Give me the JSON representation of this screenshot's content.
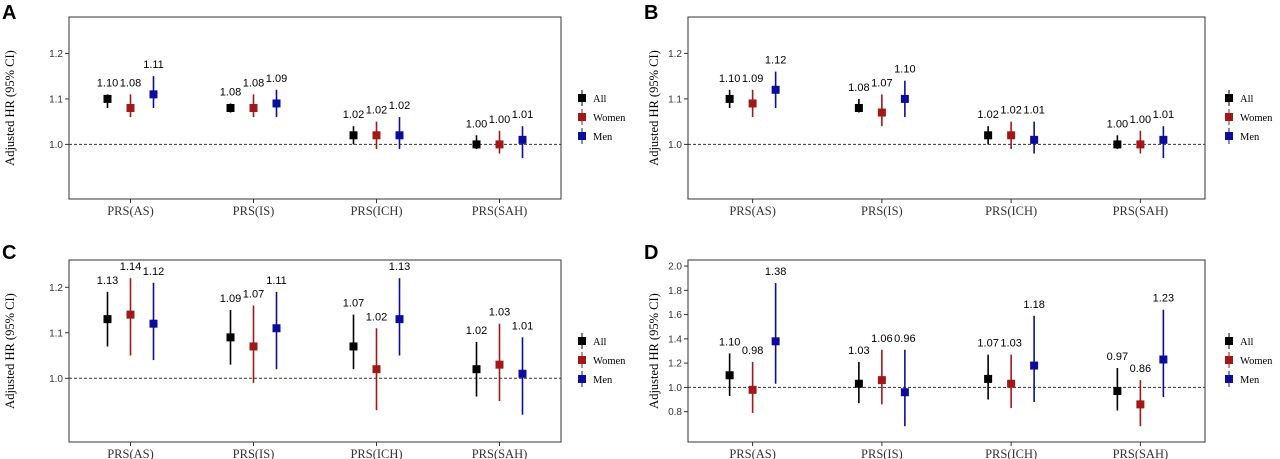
{
  "colors": {
    "All": "#000000",
    "Women": "#a01919",
    "Men": "#0d0d9a"
  },
  "legend": [
    "All",
    "Women",
    "Men"
  ],
  "chart_data": [
    {
      "panel": "A",
      "type": "errorbar",
      "ylabel": "Adjusted HR (95% CI)",
      "categories": [
        "PRS(AS)",
        "PRS(IS)",
        "PRS(ICH)",
        "PRS(SAH)"
      ],
      "ylim": [
        0.88,
        1.28
      ],
      "yticks": [
        1.0,
        1.1,
        1.2
      ],
      "ytick_labels": [
        "1.0",
        "1.1",
        "1.2"
      ],
      "reference_line": 1.0,
      "series": [
        {
          "name": "All",
          "hr": [
            1.1,
            1.08,
            1.02,
            1.0
          ],
          "lower": [
            1.08,
            1.07,
            1.0,
            0.99
          ],
          "upper": [
            1.11,
            1.09,
            1.04,
            1.02
          ],
          "labels": [
            "1.10",
            "1.08",
            "1.02",
            "1.00"
          ]
        },
        {
          "name": "Women",
          "hr": [
            1.08,
            1.08,
            1.02,
            1.0
          ],
          "lower": [
            1.06,
            1.06,
            0.99,
            0.98
          ],
          "upper": [
            1.11,
            1.11,
            1.05,
            1.03
          ],
          "labels": [
            "1.08",
            "1.08",
            "1.02",
            "1.00"
          ]
        },
        {
          "name": "Men",
          "hr": [
            1.11,
            1.09,
            1.02,
            1.01
          ],
          "lower": [
            1.08,
            1.06,
            0.99,
            0.97
          ],
          "upper": [
            1.15,
            1.12,
            1.06,
            1.04
          ],
          "labels": [
            "1.11",
            "1.09",
            "1.02",
            "1.01"
          ]
        }
      ]
    },
    {
      "panel": "B",
      "type": "errorbar",
      "ylabel": "Adjusted HR (95% CI)",
      "categories": [
        "PRS(AS)",
        "PRS(IS)",
        "PRS(ICH)",
        "PRS(SAH)"
      ],
      "ylim": [
        0.88,
        1.28
      ],
      "yticks": [
        1.0,
        1.1,
        1.2
      ],
      "ytick_labels": [
        "1.0",
        "1.1",
        "1.2"
      ],
      "reference_line": 1.0,
      "series": [
        {
          "name": "All",
          "hr": [
            1.1,
            1.08,
            1.02,
            1.0
          ],
          "lower": [
            1.08,
            1.07,
            1.0,
            0.99
          ],
          "upper": [
            1.12,
            1.1,
            1.04,
            1.02
          ],
          "labels": [
            "1.10",
            "1.08",
            "1.02",
            "1.00"
          ]
        },
        {
          "name": "Women",
          "hr": [
            1.09,
            1.07,
            1.02,
            1.0
          ],
          "lower": [
            1.06,
            1.04,
            0.99,
            0.98
          ],
          "upper": [
            1.12,
            1.11,
            1.05,
            1.03
          ],
          "labels": [
            "1.09",
            "1.07",
            "1.02",
            "1.00"
          ]
        },
        {
          "name": "Men",
          "hr": [
            1.12,
            1.1,
            1.01,
            1.01
          ],
          "lower": [
            1.08,
            1.06,
            0.98,
            0.97
          ],
          "upper": [
            1.16,
            1.14,
            1.05,
            1.04
          ],
          "labels": [
            "1.12",
            "1.10",
            "1.01",
            "1.01"
          ]
        }
      ]
    },
    {
      "panel": "C",
      "type": "errorbar",
      "ylabel": "Adjusted HR (95% CI)",
      "categories": [
        "PRS(AS)",
        "PRS(IS)",
        "PRS(ICH)",
        "PRS(SAH)"
      ],
      "ylim": [
        0.86,
        1.26
      ],
      "yticks": [
        1.0,
        1.1,
        1.2
      ],
      "ytick_labels": [
        "1.0",
        "1.1",
        "1.2"
      ],
      "reference_line": 1.0,
      "series": [
        {
          "name": "All",
          "hr": [
            1.13,
            1.09,
            1.07,
            1.02
          ],
          "lower": [
            1.07,
            1.03,
            1.02,
            0.96
          ],
          "upper": [
            1.19,
            1.15,
            1.14,
            1.08
          ],
          "labels": [
            "1.13",
            "1.09",
            "1.07",
            "1.02"
          ]
        },
        {
          "name": "Women",
          "hr": [
            1.14,
            1.07,
            1.02,
            1.03
          ],
          "lower": [
            1.05,
            0.99,
            0.93,
            0.95
          ],
          "upper": [
            1.22,
            1.16,
            1.11,
            1.12
          ],
          "labels": [
            "1.14",
            "1.07",
            "1.02",
            "1.03"
          ]
        },
        {
          "name": "Men",
          "hr": [
            1.12,
            1.11,
            1.13,
            1.01
          ],
          "lower": [
            1.04,
            1.02,
            1.05,
            0.92
          ],
          "upper": [
            1.21,
            1.19,
            1.22,
            1.09
          ],
          "labels": [
            "1.12",
            "1.11",
            "1.13",
            "1.01"
          ]
        }
      ]
    },
    {
      "panel": "D",
      "type": "errorbar",
      "ylabel": "Adjusted HR (95% CI)",
      "categories": [
        "PRS(AS)",
        "PRS(IS)",
        "PRS(ICH)",
        "PRS(SAH)"
      ],
      "ylim": [
        0.55,
        2.05
      ],
      "yticks": [
        0.8,
        1.0,
        1.2,
        1.4,
        1.6,
        1.8,
        2.0
      ],
      "ytick_labels": [
        "0.8",
        "1.0",
        "1.2",
        "1.4",
        "1.6",
        "1.8",
        "2.0"
      ],
      "reference_line": 1.0,
      "series": [
        {
          "name": "All",
          "hr": [
            1.1,
            1.03,
            1.07,
            0.97
          ],
          "lower": [
            0.93,
            0.87,
            0.9,
            0.81
          ],
          "upper": [
            1.28,
            1.21,
            1.27,
            1.16
          ],
          "labels": [
            "1.10",
            "1.03",
            "1.07",
            "0.97"
          ]
        },
        {
          "name": "Women",
          "hr": [
            0.98,
            1.06,
            1.03,
            0.86
          ],
          "lower": [
            0.79,
            0.86,
            0.83,
            0.68
          ],
          "upper": [
            1.21,
            1.31,
            1.27,
            1.06
          ],
          "labels": [
            "0.98",
            "1.06",
            "1.03",
            "0.86"
          ]
        },
        {
          "name": "Men",
          "hr": [
            1.38,
            0.96,
            1.18,
            1.23
          ],
          "lower": [
            1.03,
            0.68,
            0.88,
            0.92
          ],
          "upper": [
            1.86,
            1.31,
            1.59,
            1.64
          ],
          "labels": [
            "1.38",
            "0.96",
            "1.18",
            "1.23"
          ]
        }
      ]
    }
  ]
}
